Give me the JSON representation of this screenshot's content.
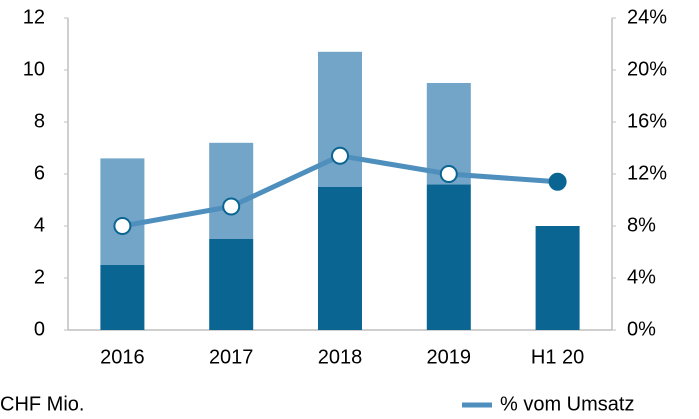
{
  "chart_data": {
    "type": "bar",
    "categories": [
      "2016",
      "2017",
      "2018",
      "2019",
      "H1 20"
    ],
    "series": [
      {
        "color": "#0a6592",
        "values": [
          2.5,
          3.5,
          5.5,
          5.6,
          4.0
        ]
      },
      {
        "color": "#73a5c8",
        "values": [
          4.1,
          3.7,
          5.2,
          3.9,
          null
        ]
      },
      {
        "name": "% vom Umsatz",
        "type": "line",
        "axis": "y2",
        "color": "#4f8fbd",
        "values": [
          8,
          9.5,
          13.4,
          12,
          11.4
        ]
      }
    ],
    "ylim": [
      0,
      12
    ],
    "yticks": [
      0,
      2,
      4,
      6,
      8,
      10,
      12
    ],
    "y2lim": [
      0,
      24
    ],
    "y2ticks": [
      {
        "value": 0,
        "label": "0%"
      },
      {
        "value": 4,
        "label": "4%"
      },
      {
        "value": 8,
        "label": "8%"
      },
      {
        "value": 12,
        "label": "12%"
      },
      {
        "value": 16,
        "label": "16%"
      },
      {
        "value": 20,
        "label": "20%"
      },
      {
        "value": 24,
        "label": "24%"
      }
    ],
    "y_unit_label": "CHF Mio.",
    "grid": false,
    "legend": "bottom-right"
  }
}
